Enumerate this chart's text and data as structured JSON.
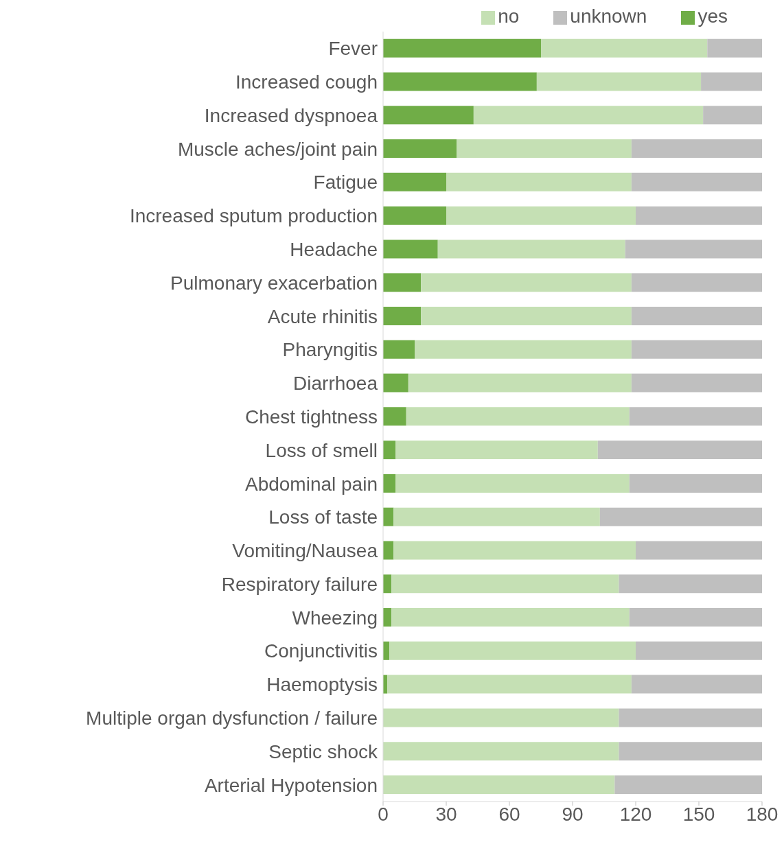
{
  "chart_data": {
    "type": "bar",
    "orientation": "horizontal",
    "stacked": true,
    "legend": "top right",
    "categories": [
      "Fever",
      "Increased cough",
      "Increased dyspnoea",
      "Muscle aches/joint pain",
      "Fatigue",
      "Increased sputum production",
      "Headache",
      "Pulmonary exacerbation",
      "Acute rhinitis",
      "Pharyngitis ",
      "Diarrhoea",
      "Chest tightness",
      "Loss of smell",
      "Abdominal pain",
      "Loss of taste",
      "Vomiting/Nausea",
      "Respiratory failure",
      "Wheezing",
      "Conjunctivitis",
      "Haemoptysis",
      "Multiple organ dysfunction / failure",
      "Septic shock",
      "Arterial Hypotension"
    ],
    "series": [
      {
        "name": "yes",
        "color": "#70ad47",
        "values": [
          75,
          73,
          43,
          35,
          30,
          30,
          26,
          18,
          18,
          15,
          12,
          11,
          6,
          6,
          5,
          5,
          4,
          4,
          3,
          2,
          0,
          0,
          0
        ]
      },
      {
        "name": "no",
        "color": "#c5e0b4",
        "values": [
          79,
          78,
          109,
          83,
          88,
          90,
          89,
          100,
          100,
          103,
          106,
          106,
          96,
          111,
          98,
          115,
          108,
          113,
          117,
          116,
          112,
          112,
          110
        ]
      },
      {
        "name": "unknown",
        "color": "#bfbfbf",
        "values": [
          26,
          29,
          28,
          62,
          62,
          60,
          65,
          62,
          62,
          62,
          62,
          63,
          78,
          63,
          77,
          60,
          68,
          63,
          60,
          62,
          68,
          68,
          70
        ]
      }
    ],
    "xlim": [
      0,
      180
    ],
    "xticks": [
      0,
      30,
      60,
      90,
      120,
      150,
      180
    ]
  }
}
